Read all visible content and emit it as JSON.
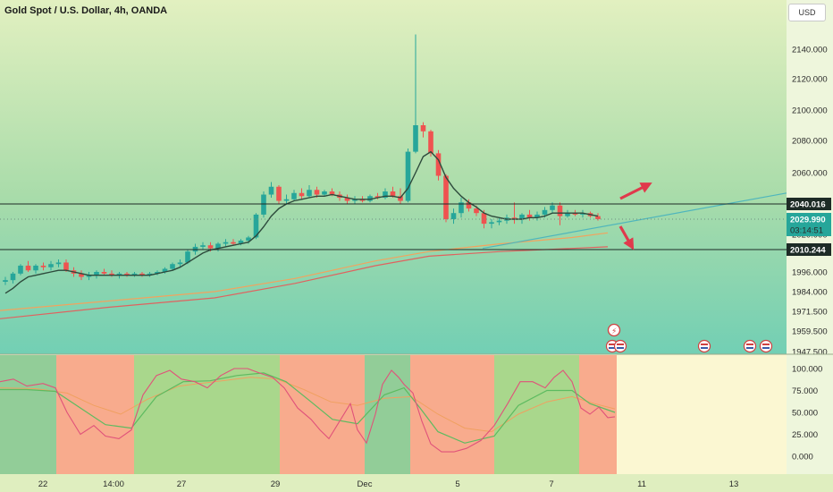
{
  "header": {
    "title": "Gold Spot / U.S. Dollar, 4h, OANDA",
    "currency": "USD"
  },
  "colors": {
    "bull": "#26a69a",
    "bear": "#ef5350",
    "ma_fast": "#2d4a3c",
    "ma_mid": "#f2a35e",
    "ma_slow": "#e0625f",
    "trendline": "#4fb6bc",
    "arrow": "#e0394c",
    "stoch_k": "#e0527a",
    "stoch_d": "#5dbb60",
    "stoch_d2": "#f0a060"
  },
  "chart_data": [
    {
      "type": "candlestick",
      "title": "Gold Spot / U.S. Dollar, 4h, OANDA",
      "ylim": [
        1941,
        2162
      ],
      "y_ticks": [
        "2140.000",
        "2120.000",
        "2100.000",
        "2080.000",
        "2060.000",
        "2020.000",
        "1996.000",
        "1984.000",
        "1971.500",
        "1959.500",
        "1947.500"
      ],
      "x_labels": [
        "22",
        "14:00",
        "27",
        "29",
        "Dec",
        "5",
        "7",
        "11",
        "13"
      ],
      "price_lines": [
        {
          "label": "2040.016",
          "value": 2040.016
        },
        {
          "label": "2010.244",
          "value": 2010.244
        }
      ],
      "current_price": {
        "label": "2029.990",
        "countdown": "03:14:51",
        "value": 2029.99
      },
      "candles": [
        {
          "o": 1990,
          "h": 1993,
          "l": 1988,
          "c": 1991
        },
        {
          "o": 1991,
          "h": 1996,
          "l": 1989,
          "c": 1995
        },
        {
          "o": 1995,
          "h": 2001,
          "l": 1994,
          "c": 2000
        },
        {
          "o": 2000,
          "h": 2003,
          "l": 1996,
          "c": 1997
        },
        {
          "o": 1997,
          "h": 2001,
          "l": 1995,
          "c": 2000
        },
        {
          "o": 2000,
          "h": 2002,
          "l": 1997,
          "c": 1999
        },
        {
          "o": 1999,
          "h": 2003,
          "l": 1997,
          "c": 2001
        },
        {
          "o": 2001,
          "h": 2004,
          "l": 1999,
          "c": 2002
        },
        {
          "o": 2002,
          "h": 2004,
          "l": 1996,
          "c": 1997
        },
        {
          "o": 1997,
          "h": 1999,
          "l": 1993,
          "c": 1995
        },
        {
          "o": 1995,
          "h": 1997,
          "l": 1991,
          "c": 1993
        },
        {
          "o": 1993,
          "h": 1996,
          "l": 1991,
          "c": 1994
        },
        {
          "o": 1994,
          "h": 1997,
          "l": 1992,
          "c": 1996
        },
        {
          "o": 1996,
          "h": 1998,
          "l": 1994,
          "c": 1995
        },
        {
          "o": 1995,
          "h": 1997,
          "l": 1993,
          "c": 1994
        },
        {
          "o": 1994,
          "h": 1996,
          "l": 1992,
          "c": 1995
        },
        {
          "o": 1995,
          "h": 1996,
          "l": 1993,
          "c": 1994
        },
        {
          "o": 1994,
          "h": 1996,
          "l": 1993,
          "c": 1995
        },
        {
          "o": 1995,
          "h": 1996,
          "l": 1993,
          "c": 1994
        },
        {
          "o": 1994,
          "h": 1996,
          "l": 1993,
          "c": 1995
        },
        {
          "o": 1995,
          "h": 1997,
          "l": 1994,
          "c": 1996
        },
        {
          "o": 1996,
          "h": 1999,
          "l": 1995,
          "c": 1998
        },
        {
          "o": 1998,
          "h": 2002,
          "l": 1997,
          "c": 2001
        },
        {
          "o": 2001,
          "h": 2004,
          "l": 1999,
          "c": 2002
        },
        {
          "o": 2002,
          "h": 2010,
          "l": 2001,
          "c": 2009
        },
        {
          "o": 2009,
          "h": 2014,
          "l": 2007,
          "c": 2012
        },
        {
          "o": 2012,
          "h": 2015,
          "l": 2010,
          "c": 2013
        },
        {
          "o": 2013,
          "h": 2015,
          "l": 2009,
          "c": 2011
        },
        {
          "o": 2011,
          "h": 2015,
          "l": 2009,
          "c": 2014
        },
        {
          "o": 2014,
          "h": 2017,
          "l": 2012,
          "c": 2015
        },
        {
          "o": 2015,
          "h": 2017,
          "l": 2013,
          "c": 2014
        },
        {
          "o": 2014,
          "h": 2017,
          "l": 2013,
          "c": 2016
        },
        {
          "o": 2016,
          "h": 2019,
          "l": 2014,
          "c": 2018
        },
        {
          "o": 2018,
          "h": 2034,
          "l": 2017,
          "c": 2033
        },
        {
          "o": 2033,
          "h": 2048,
          "l": 2031,
          "c": 2046
        },
        {
          "o": 2046,
          "h": 2054,
          "l": 2044,
          "c": 2051
        },
        {
          "o": 2051,
          "h": 2052,
          "l": 2040,
          "c": 2042
        },
        {
          "o": 2042,
          "h": 2046,
          "l": 2040,
          "c": 2043
        },
        {
          "o": 2043,
          "h": 2049,
          "l": 2042,
          "c": 2047
        },
        {
          "o": 2047,
          "h": 2050,
          "l": 2043,
          "c": 2045
        },
        {
          "o": 2045,
          "h": 2052,
          "l": 2044,
          "c": 2049
        },
        {
          "o": 2049,
          "h": 2051,
          "l": 2044,
          "c": 2046
        },
        {
          "o": 2046,
          "h": 2049,
          "l": 2045,
          "c": 2048
        },
        {
          "o": 2048,
          "h": 2050,
          "l": 2045,
          "c": 2046
        },
        {
          "o": 2046,
          "h": 2048,
          "l": 2042,
          "c": 2044
        },
        {
          "o": 2044,
          "h": 2046,
          "l": 2040,
          "c": 2042
        },
        {
          "o": 2042,
          "h": 2045,
          "l": 2040,
          "c": 2043
        },
        {
          "o": 2043,
          "h": 2045,
          "l": 2041,
          "c": 2042
        },
        {
          "o": 2042,
          "h": 2046,
          "l": 2041,
          "c": 2045
        },
        {
          "o": 2045,
          "h": 2047,
          "l": 2043,
          "c": 2044
        },
        {
          "o": 2044,
          "h": 2050,
          "l": 2043,
          "c": 2048
        },
        {
          "o": 2048,
          "h": 2051,
          "l": 2044,
          "c": 2045
        },
        {
          "o": 2045,
          "h": 2050,
          "l": 2040,
          "c": 2042
        },
        {
          "o": 2042,
          "h": 2075,
          "l": 2041,
          "c": 2073
        },
        {
          "o": 2073,
          "h": 2150,
          "l": 2072,
          "c": 2090
        },
        {
          "o": 2090,
          "h": 2092,
          "l": 2082,
          "c": 2086
        },
        {
          "o": 2086,
          "h": 2087,
          "l": 2070,
          "c": 2072
        },
        {
          "o": 2072,
          "h": 2074,
          "l": 2055,
          "c": 2058
        },
        {
          "o": 2058,
          "h": 2059,
          "l": 2028,
          "c": 2030
        },
        {
          "o": 2030,
          "h": 2037,
          "l": 2027,
          "c": 2034
        },
        {
          "o": 2034,
          "h": 2044,
          "l": 2031,
          "c": 2041
        },
        {
          "o": 2041,
          "h": 2043,
          "l": 2035,
          "c": 2037
        },
        {
          "o": 2037,
          "h": 2039,
          "l": 2032,
          "c": 2034
        },
        {
          "o": 2034,
          "h": 2036,
          "l": 2024,
          "c": 2027
        },
        {
          "o": 2027,
          "h": 2030,
          "l": 2024,
          "c": 2028
        },
        {
          "o": 2028,
          "h": 2031,
          "l": 2026,
          "c": 2029
        },
        {
          "o": 2029,
          "h": 2033,
          "l": 2027,
          "c": 2031
        },
        {
          "o": 2031,
          "h": 2041,
          "l": 2027,
          "c": 2030
        },
        {
          "o": 2030,
          "h": 2034,
          "l": 2027,
          "c": 2033
        },
        {
          "o": 2033,
          "h": 2036,
          "l": 2029,
          "c": 2031
        },
        {
          "o": 2031,
          "h": 2035,
          "l": 2029,
          "c": 2033
        },
        {
          "o": 2033,
          "h": 2038,
          "l": 2031,
          "c": 2036
        },
        {
          "o": 2036,
          "h": 2041,
          "l": 2034,
          "c": 2039
        },
        {
          "o": 2039,
          "h": 2041,
          "l": 2026,
          "c": 2032
        },
        {
          "o": 2032,
          "h": 2036,
          "l": 2031,
          "c": 2034
        },
        {
          "o": 2034,
          "h": 2036,
          "l": 2032,
          "c": 2033
        },
        {
          "o": 2033,
          "h": 2036,
          "l": 2031,
          "c": 2034
        },
        {
          "o": 2034,
          "h": 2035,
          "l": 2031,
          "c": 2032
        },
        {
          "o": 2032,
          "h": 2034,
          "l": 2029,
          "c": 2030
        }
      ],
      "ma_fast": [
        1983,
        1986,
        1990,
        1993,
        1994,
        1995,
        1996,
        1997,
        1997,
        1996,
        1995,
        1994,
        1994,
        1994,
        1994,
        1994,
        1994,
        1994,
        1994,
        1994,
        1995,
        1996,
        1997,
        1999,
        2002,
        2005,
        2008,
        2010,
        2011,
        2012,
        2013,
        2014,
        2015,
        2019,
        2025,
        2032,
        2037,
        2040,
        2042,
        2043,
        2044,
        2045,
        2045,
        2046,
        2045,
        2044,
        2043,
        2043,
        2043,
        2044,
        2045,
        2045,
        2044,
        2050,
        2060,
        2070,
        2073,
        2068,
        2057,
        2050,
        2045,
        2041,
        2038,
        2034,
        2032,
        2031,
        2030,
        2030,
        2030,
        2031,
        2031,
        2032,
        2034,
        2034,
        2034,
        2034,
        2034,
        2033,
        2032
      ],
      "ma_mid": [
        [
          0,
          1972
        ],
        [
          120,
          1978
        ],
        [
          240,
          1984
        ],
        [
          330,
          1992
        ],
        [
          420,
          2003
        ],
        [
          480,
          2009
        ],
        [
          560,
          2014
        ],
        [
          640,
          2018
        ],
        [
          680,
          2021
        ]
      ],
      "ma_slow": [
        [
          0,
          1967
        ],
        [
          120,
          1974
        ],
        [
          240,
          1980
        ],
        [
          330,
          1989
        ],
        [
          420,
          2000
        ],
        [
          480,
          2006
        ],
        [
          560,
          2009
        ],
        [
          640,
          2011
        ],
        [
          680,
          2012
        ]
      ],
      "trendline": [
        [
          540,
          2011
        ],
        [
          880,
          2047
        ]
      ]
    },
    {
      "type": "line",
      "y_ticks": [
        "100.000",
        "75.000",
        "50.000",
        "25.000",
        "0.000"
      ],
      "ylim": [
        -15,
        105
      ],
      "zones": [
        {
          "x0": 0,
          "x1": 63,
          "color": "#86c891"
        },
        {
          "x0": 63,
          "x1": 150,
          "color": "#f7a285"
        },
        {
          "x0": 150,
          "x1": 313,
          "color": "#a0d384"
        },
        {
          "x0": 313,
          "x1": 408,
          "color": "#f7a285"
        },
        {
          "x0": 408,
          "x1": 459,
          "color": "#86c891"
        },
        {
          "x0": 459,
          "x1": 553,
          "color": "#f7a285"
        },
        {
          "x0": 553,
          "x1": 648,
          "color": "#a0d384"
        },
        {
          "x0": 648,
          "x1": 690,
          "color": "#f7a285"
        }
      ],
      "stoch_k": [
        [
          0,
          85
        ],
        [
          15,
          88
        ],
        [
          30,
          80
        ],
        [
          48,
          83
        ],
        [
          62,
          78
        ],
        [
          75,
          50
        ],
        [
          90,
          25
        ],
        [
          105,
          35
        ],
        [
          118,
          23
        ],
        [
          133,
          20
        ],
        [
          147,
          30
        ],
        [
          160,
          70
        ],
        [
          175,
          92
        ],
        [
          190,
          98
        ],
        [
          203,
          88
        ],
        [
          218,
          85
        ],
        [
          232,
          78
        ],
        [
          247,
          92
        ],
        [
          262,
          100
        ],
        [
          277,
          100
        ],
        [
          290,
          95
        ],
        [
          305,
          90
        ],
        [
          318,
          78
        ],
        [
          333,
          55
        ],
        [
          348,
          42
        ],
        [
          358,
          30
        ],
        [
          368,
          20
        ],
        [
          380,
          40
        ],
        [
          392,
          60
        ],
        [
          400,
          30
        ],
        [
          410,
          15
        ],
        [
          420,
          48
        ],
        [
          428,
          82
        ],
        [
          438,
          98
        ],
        [
          446,
          90
        ],
        [
          452,
          82
        ],
        [
          462,
          72
        ],
        [
          472,
          40
        ],
        [
          482,
          14
        ],
        [
          494,
          5
        ],
        [
          508,
          5
        ],
        [
          522,
          9
        ],
        [
          538,
          18
        ],
        [
          553,
          35
        ],
        [
          568,
          60
        ],
        [
          582,
          85
        ],
        [
          596,
          85
        ],
        [
          610,
          78
        ],
        [
          620,
          90
        ],
        [
          630,
          98
        ],
        [
          640,
          85
        ],
        [
          650,
          55
        ],
        [
          660,
          48
        ],
        [
          670,
          56
        ],
        [
          680,
          44
        ],
        [
          688,
          45
        ]
      ],
      "stoch_d": [
        [
          0,
          76
        ],
        [
          30,
          76
        ],
        [
          62,
          74
        ],
        [
          90,
          55
        ],
        [
          118,
          36
        ],
        [
          147,
          32
        ],
        [
          175,
          68
        ],
        [
          205,
          85
        ],
        [
          235,
          86
        ],
        [
          265,
          92
        ],
        [
          295,
          95
        ],
        [
          320,
          85
        ],
        [
          348,
          62
        ],
        [
          372,
          42
        ],
        [
          400,
          37
        ],
        [
          430,
          70
        ],
        [
          452,
          78
        ],
        [
          470,
          55
        ],
        [
          490,
          28
        ],
        [
          520,
          15
        ],
        [
          553,
          23
        ],
        [
          580,
          58
        ],
        [
          612,
          75
        ],
        [
          640,
          75
        ],
        [
          660,
          60
        ],
        [
          688,
          50
        ]
      ],
      "stoch_d2": [
        [
          0,
          78
        ],
        [
          40,
          77
        ],
        [
          75,
          72
        ],
        [
          105,
          58
        ],
        [
          135,
          48
        ],
        [
          165,
          65
        ],
        [
          200,
          80
        ],
        [
          240,
          85
        ],
        [
          280,
          90
        ],
        [
          310,
          88
        ],
        [
          340,
          76
        ],
        [
          370,
          62
        ],
        [
          400,
          58
        ],
        [
          430,
          66
        ],
        [
          460,
          68
        ],
        [
          490,
          48
        ],
        [
          520,
          32
        ],
        [
          550,
          28
        ],
        [
          580,
          48
        ],
        [
          612,
          62
        ],
        [
          640,
          68
        ],
        [
          665,
          60
        ],
        [
          688,
          54
        ]
      ]
    }
  ]
}
